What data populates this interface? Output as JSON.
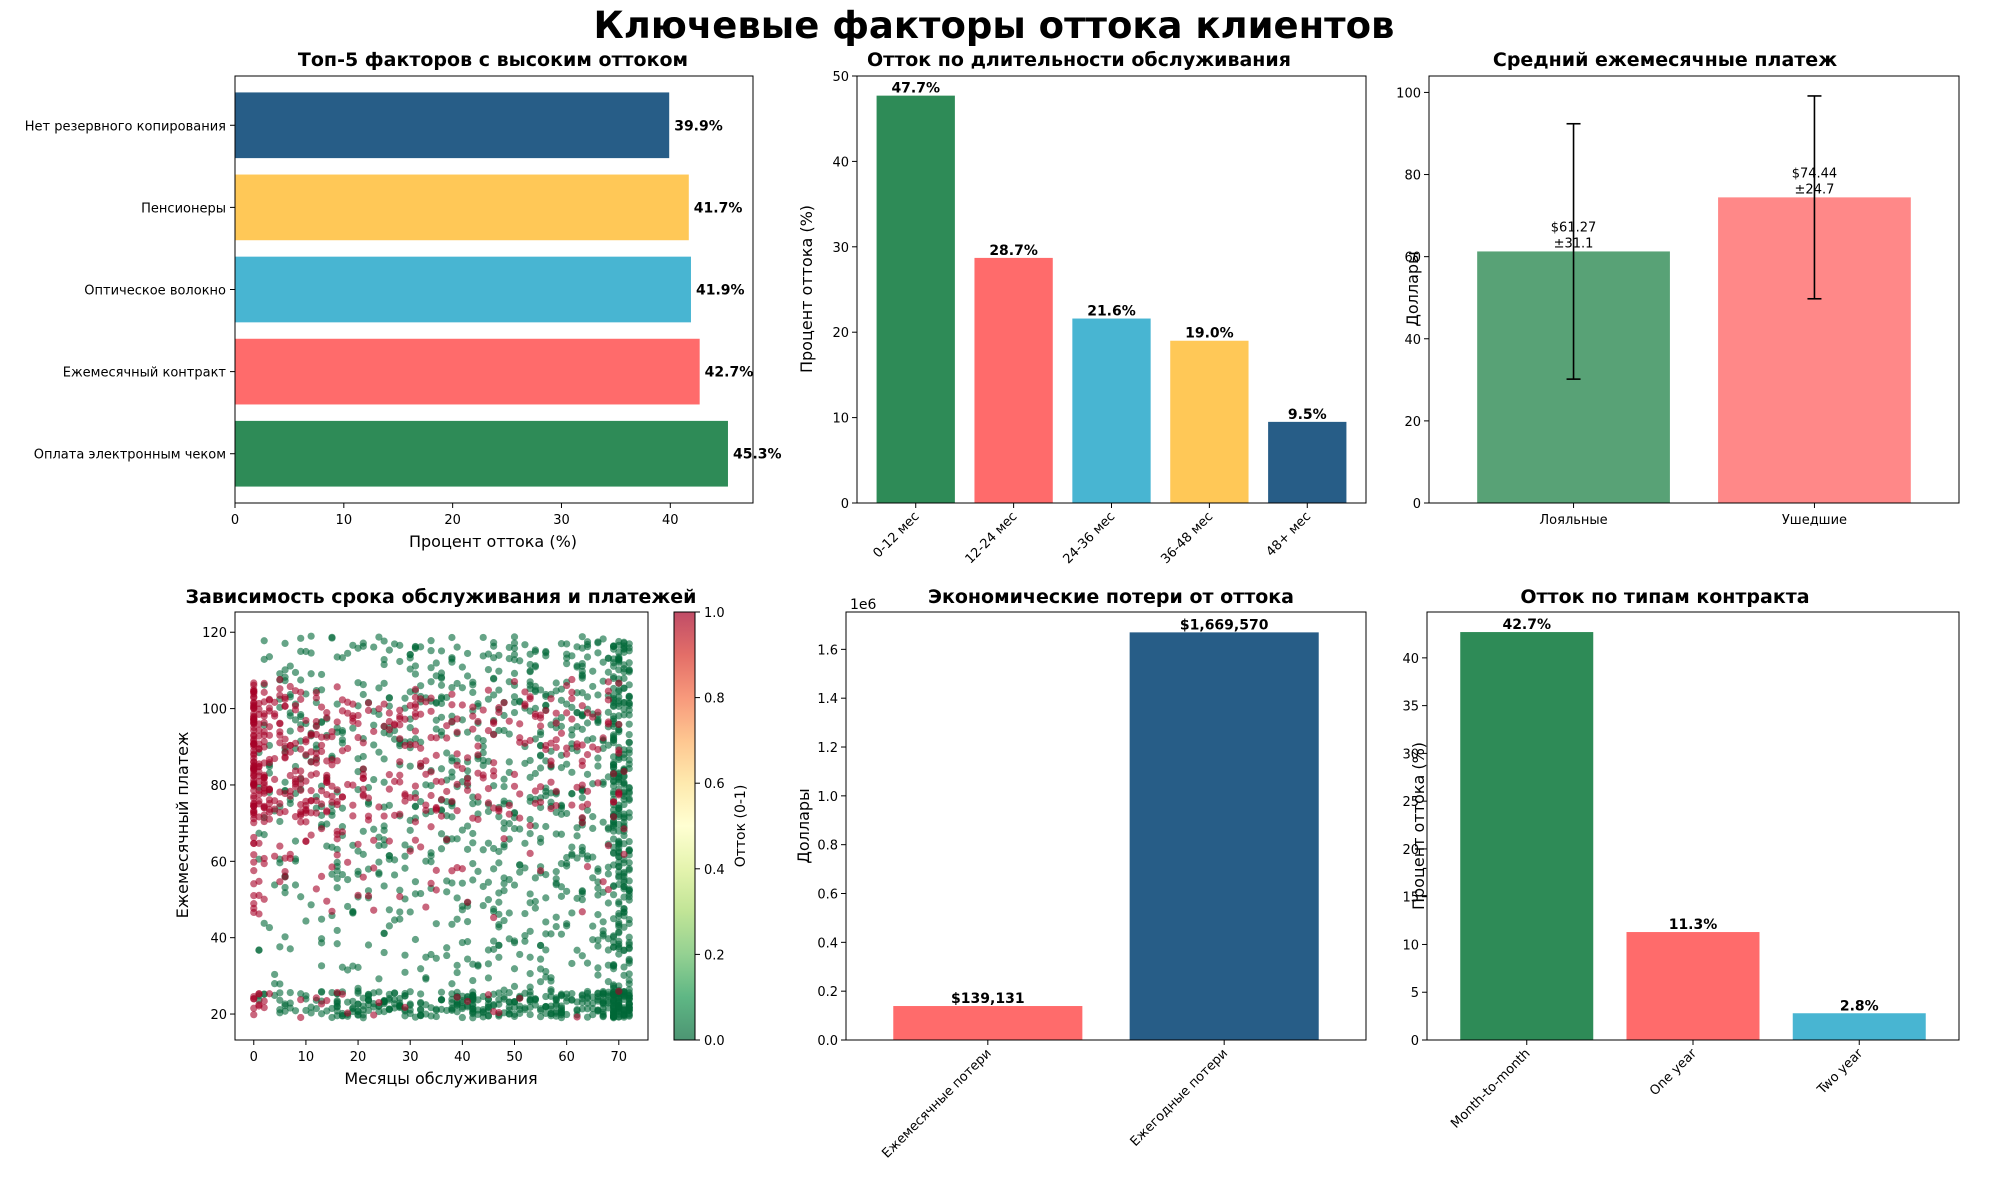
{
  "suptitle": "Ключевые факторы оттока клиентов",
  "colors": {
    "green": "#2e8b57",
    "red": "#ff6b6b",
    "cyan": "#48b5d2",
    "yellow": "#ffc857",
    "navy": "#275d87",
    "green_light": "#58a276",
    "red_light": "#ff8888"
  },
  "chart_data": [
    {
      "type": "bar",
      "orientation": "horizontal",
      "title": "Топ-5 факторов с высоким оттоком",
      "xlabel": "Процент оттока (%)",
      "ylabel": "",
      "categories": [
        "Оплата электронным чеком",
        "Ежемесячный контракт",
        "Оптическое волокно",
        "Пенсионеры",
        "Нет резервного копирования"
      ],
      "values": [
        45.3,
        42.7,
        41.9,
        41.7,
        39.9
      ],
      "data_labels": [
        "45.3%",
        "42.7%",
        "41.9%",
        "41.7%",
        "39.9%"
      ],
      "xlim": [
        0,
        47.6
      ],
      "xticks": [
        0,
        10,
        20,
        30,
        40
      ],
      "grid": false
    },
    {
      "type": "bar",
      "title": "Отток по длительности обслуживания",
      "xlabel": "",
      "ylabel": "Процент оттока (%)",
      "categories": [
        "0-12 мес",
        "12-24 мес",
        "24-36 мес",
        "36-48 мес",
        "48+ мес"
      ],
      "values": [
        47.7,
        28.7,
        21.6,
        19.0,
        9.5
      ],
      "data_labels": [
        "47.7%",
        "28.7%",
        "21.6%",
        "19.0%",
        "9.5%"
      ],
      "ylim": [
        0,
        50
      ],
      "yticks": [
        0,
        10,
        20,
        30,
        40,
        50
      ],
      "grid": false
    },
    {
      "type": "bar",
      "title": "Средний ежемесячные платеж",
      "xlabel": "",
      "ylabel": "Доллары",
      "categories": [
        "Лояльные",
        "Ушедшие"
      ],
      "values": [
        61.27,
        74.44
      ],
      "errors": [
        31.1,
        24.7
      ],
      "data_labels": [
        [
          "$61.27",
          "±31.1"
        ],
        [
          "$74.44",
          "±24.7"
        ]
      ],
      "ylim": [
        0,
        104
      ],
      "yticks": [
        0,
        20,
        40,
        60,
        80,
        100
      ],
      "grid": false
    },
    {
      "type": "scatter",
      "title": "Зависимость срока обслуживания и платежей",
      "xlabel": "Месяцы обслуживания",
      "ylabel": "Ежемесячный платеж",
      "xlim": [
        -3.6,
        75.6
      ],
      "ylim": [
        13.2,
        125.3
      ],
      "xticks": [
        0,
        10,
        20,
        30,
        40,
        50,
        60,
        70
      ],
      "yticks": [
        20,
        40,
        60,
        80,
        100,
        120
      ],
      "colorbar": {
        "label": "Отток (0-1)",
        "ticks": [
          "0.0",
          "0.2",
          "0.4",
          "0.6",
          "0.8",
          "1.0"
        ],
        "colormap": "RdYlGn_r"
      },
      "series": [
        {
          "name": "",
          "description": "loyal customers, tenure 0–72 months, monthly charges 18–119 USD, dense band at ~20"
        },
        {
          "name": "",
          "description": "churned customers, concentrated at tenure 0–20 months, charges 70–105 USD"
        }
      ],
      "grid": false
    },
    {
      "type": "bar",
      "title": "Экономические потери от оттока",
      "xlabel": "",
      "ylabel": "Доллары",
      "offset_text": "1e6",
      "categories": [
        "Ежемесячные потери",
        "Ежегодные потери"
      ],
      "values": [
        139131,
        1669570
      ],
      "data_labels": [
        "$139,131",
        "$1,669,570"
      ],
      "ylim": [
        0,
        1753000
      ],
      "yticks": [
        "0.0",
        "0.2",
        "0.4",
        "0.6",
        "0.8",
        "1.0",
        "1.2",
        "1.4",
        "1.6"
      ],
      "grid": false
    },
    {
      "type": "bar",
      "title": "Отток по типам контракта",
      "xlabel": "",
      "ylabel": "Процент оттока (%)",
      "categories": [
        "Month-to-month",
        "One year",
        "Two year"
      ],
      "values": [
        42.7,
        11.3,
        2.8
      ],
      "data_labels": [
        "42.7%",
        "11.3%",
        "2.8%"
      ],
      "ylim": [
        0,
        44.8
      ],
      "yticks": [
        0,
        5,
        10,
        15,
        20,
        25,
        30,
        35,
        40
      ],
      "grid": false
    }
  ]
}
